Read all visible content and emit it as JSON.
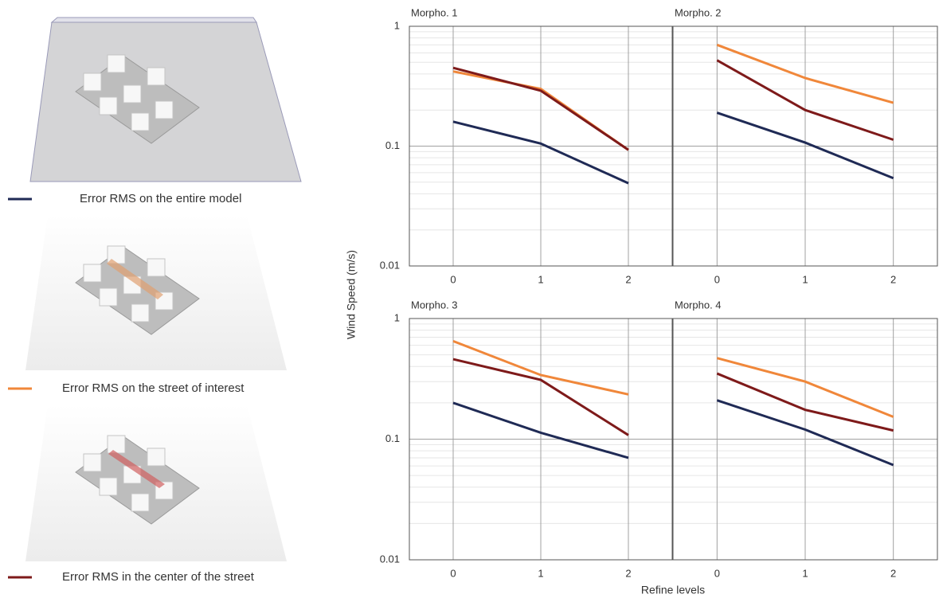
{
  "chart_data": [
    {
      "type": "line",
      "title": "Morpho. 1",
      "x": [
        0,
        1,
        2
      ],
      "xlim": [
        -0.5,
        2.5
      ],
      "xticks": [
        0,
        1,
        2
      ],
      "ylim": [
        0.01,
        1
      ],
      "yticks": [
        0.01,
        0.1,
        1
      ],
      "log_y": true,
      "grid": true,
      "series": [
        {
          "color": "#1f2a55",
          "values": [
            0.16,
            0.105,
            0.049
          ]
        },
        {
          "color": "#f0873a",
          "values": [
            0.42,
            0.3,
            0.093
          ]
        },
        {
          "color": "#7e1a1a",
          "values": [
            0.45,
            0.29,
            0.093
          ]
        }
      ]
    },
    {
      "type": "line",
      "title": "Morpho. 2",
      "x": [
        0,
        1,
        2
      ],
      "xlim": [
        -0.5,
        2.5
      ],
      "xticks": [
        0,
        1,
        2
      ],
      "ylim": [
        0.01,
        1
      ],
      "yticks": [
        0.01,
        0.1,
        1
      ],
      "log_y": true,
      "grid": true,
      "series": [
        {
          "color": "#1f2a55",
          "values": [
            0.19,
            0.107,
            0.054
          ]
        },
        {
          "color": "#f0873a",
          "values": [
            0.7,
            0.37,
            0.23
          ]
        },
        {
          "color": "#7e1a1a",
          "values": [
            0.52,
            0.2,
            0.113
          ]
        }
      ]
    },
    {
      "type": "line",
      "title": "Morpho. 3",
      "x": [
        0,
        1,
        2
      ],
      "xlim": [
        -0.5,
        2.5
      ],
      "xticks": [
        0,
        1,
        2
      ],
      "ylim": [
        0.01,
        1
      ],
      "yticks": [
        0.01,
        0.1,
        1
      ],
      "log_y": true,
      "grid": true,
      "series": [
        {
          "color": "#1f2a55",
          "values": [
            0.2,
            0.113,
            0.07
          ]
        },
        {
          "color": "#f0873a",
          "values": [
            0.65,
            0.34,
            0.235
          ]
        },
        {
          "color": "#7e1a1a",
          "values": [
            0.46,
            0.31,
            0.108
          ]
        }
      ]
    },
    {
      "type": "line",
      "title": "Morpho. 4",
      "x": [
        0,
        1,
        2
      ],
      "xlim": [
        -0.5,
        2.5
      ],
      "xticks": [
        0,
        1,
        2
      ],
      "ylim": [
        0.01,
        1
      ],
      "yticks": [
        0.01,
        0.1,
        1
      ],
      "log_y": true,
      "grid": true,
      "series": [
        {
          "color": "#1f2a55",
          "values": [
            0.21,
            0.12,
            0.061
          ]
        },
        {
          "color": "#f0873a",
          "values": [
            0.47,
            0.3,
            0.153
          ]
        },
        {
          "color": "#7e1a1a",
          "values": [
            0.35,
            0.175,
            0.118
          ]
        }
      ]
    }
  ],
  "ylabel": "Wind Speed (m/s)",
  "xlabel": "Refine levels",
  "legend": [
    {
      "name": "Error RMS on the entire model",
      "color": "#1f2a55"
    },
    {
      "name": "Error RMS on the street of interest",
      "color": "#f0873a"
    },
    {
      "name": "Error RMS in the center of the street",
      "color": "#7e1a1a"
    }
  ]
}
